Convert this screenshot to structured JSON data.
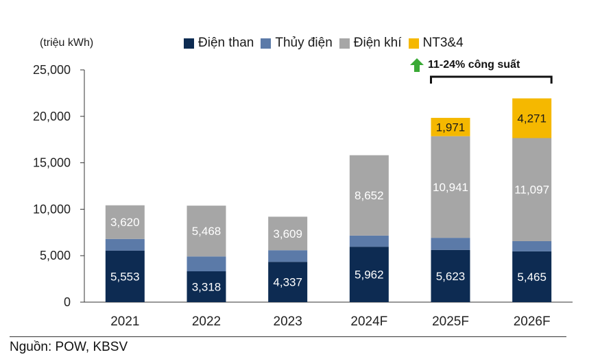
{
  "chart_data": {
    "type": "bar",
    "stacked": true,
    "unit_label": "(triệu kWh)",
    "categories": [
      "2021",
      "2022",
      "2023",
      "2024F",
      "2025F",
      "2026F"
    ],
    "series": [
      {
        "name": "Điện than",
        "color": "#0d2b52",
        "values": [
          5553,
          3318,
          4337,
          5962,
          5623,
          5465
        ],
        "labels": [
          "5,553",
          "3,318",
          "4,337",
          "5,962",
          "5,623",
          "5,465"
        ]
      },
      {
        "name": "Thủy điện",
        "color": "#5b7aa8",
        "values": [
          1250,
          1600,
          1250,
          1200,
          1300,
          1100
        ],
        "labels": [
          "",
          "",
          "",
          "",
          "",
          ""
        ]
      },
      {
        "name": "Điện khí",
        "color": "#a6a6a6",
        "values": [
          3620,
          5468,
          3609,
          8652,
          10941,
          11097
        ],
        "labels": [
          "3,620",
          "5,468",
          "3,609",
          "8,652",
          "10,941",
          "11,097"
        ]
      },
      {
        "name": "NT3&4",
        "color": "#f5b800",
        "values": [
          0,
          0,
          0,
          0,
          1971,
          4271
        ],
        "labels": [
          "",
          "",
          "",
          "",
          "1,971",
          "4,271"
        ]
      }
    ],
    "ylim": [
      0,
      25000
    ],
    "yticks": [
      0,
      5000,
      10000,
      15000,
      20000,
      25000
    ],
    "ytick_labels": [
      "0",
      "5,000",
      "10,000",
      "15,000",
      "20,000",
      "25,000"
    ],
    "legend_position": "top",
    "annotation": {
      "text": "11-24% công suất",
      "spans": [
        "2025F",
        "2026F"
      ],
      "arrow_color": "#3aa935"
    }
  },
  "source": "Nguồn: POW, KBSV"
}
